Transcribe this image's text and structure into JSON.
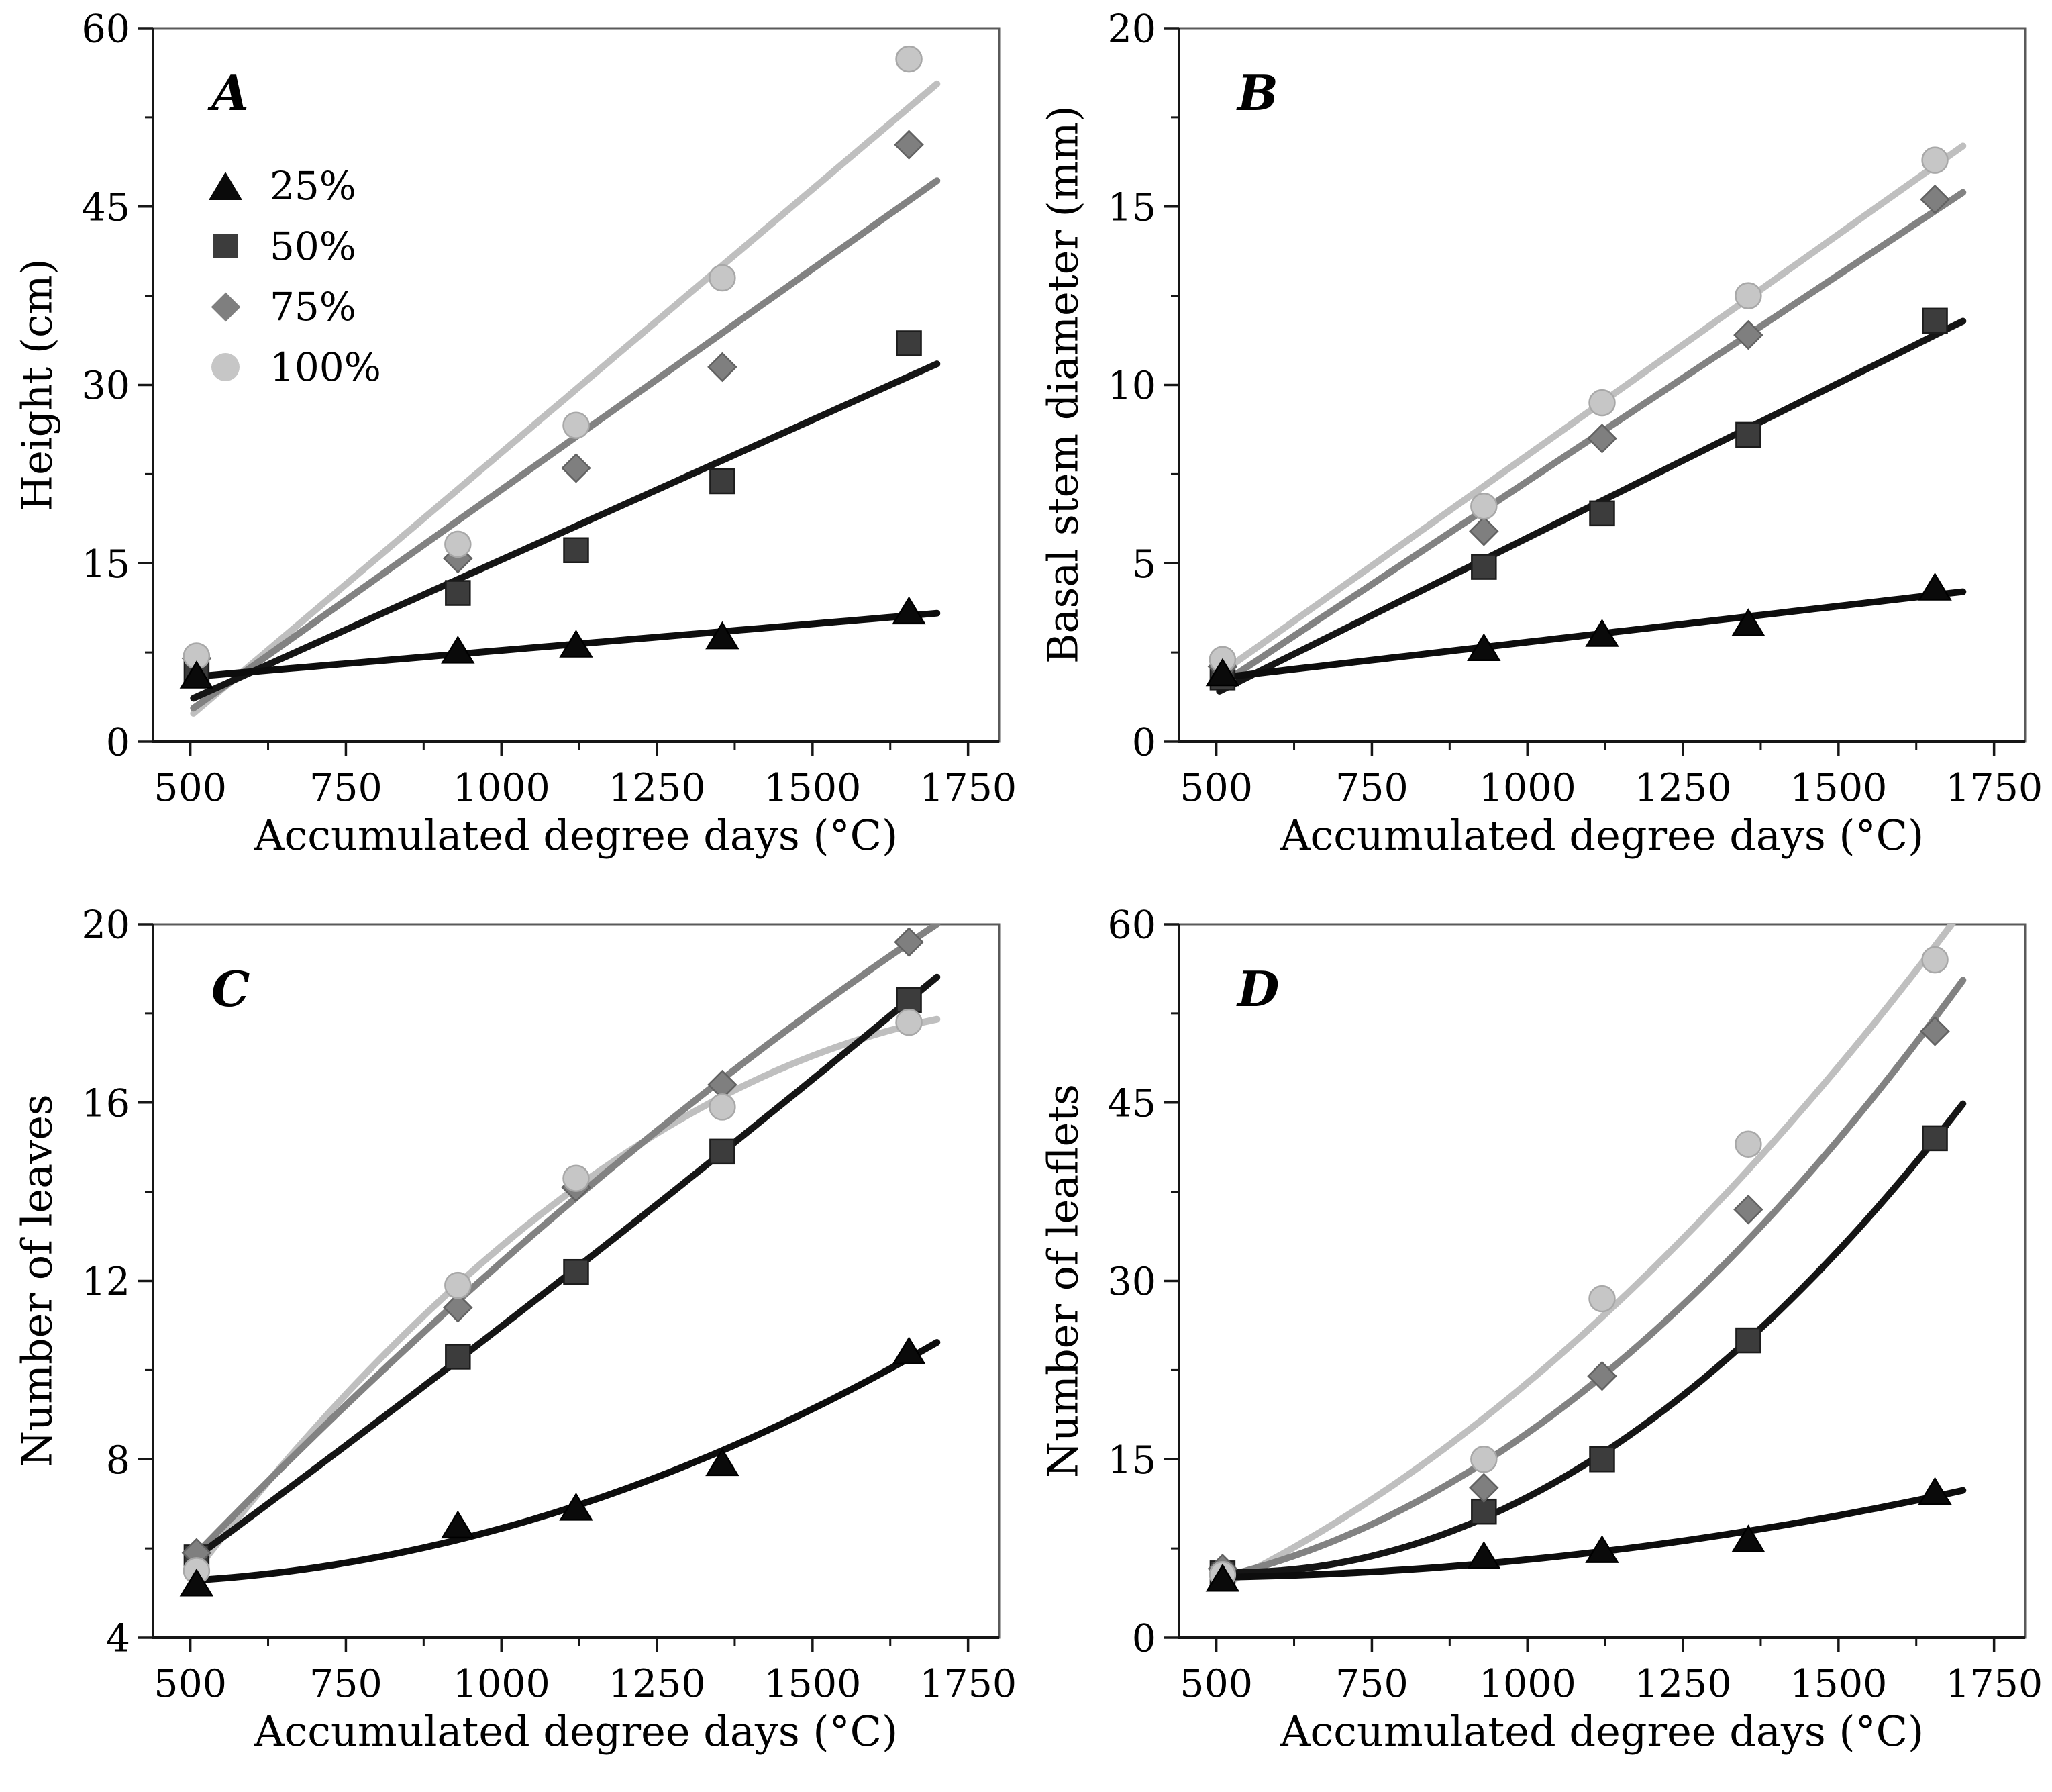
{
  "figure": {
    "background": "#ffffff"
  },
  "chart_data": {
    "type": "scatter",
    "xlabel": "Accumulated degree days (°C)",
    "x_values": [
      510,
      930,
      1120,
      1355,
      1655
    ],
    "xlim": [
      440,
      1800
    ],
    "xticks": [
      500,
      750,
      1000,
      1250,
      1500,
      1750
    ],
    "grid": "off",
    "legend": {
      "position": "upper-left-panel-A",
      "items": [
        {
          "label": "25%",
          "marker": "triangle",
          "color": "#0a0a0a",
          "edge": "#000000",
          "line_color": "#0d0d0d"
        },
        {
          "label": "50%",
          "marker": "square",
          "color": "#3c3c3c",
          "edge": "#1c1c1c",
          "line_color": "#151515"
        },
        {
          "label": "75%",
          "marker": "diamond",
          "color": "#7f7f7f",
          "edge": "#626262",
          "line_color": "#828282"
        },
        {
          "label": "100%",
          "marker": "circle",
          "color": "#c6c6c6",
          "edge": "#a8a8a8",
          "line_color": "#bfbfbf"
        }
      ]
    },
    "panels": [
      {
        "id": "A",
        "letter": "A",
        "ylabel": "Height (cm)",
        "ylim": [
          0,
          60
        ],
        "yticks": [
          0,
          15,
          30,
          45,
          60
        ],
        "fit": "linear",
        "show_legend": true,
        "series": [
          {
            "name": "25%",
            "values": [
              5.5,
              7.6,
              8.1,
              8.8,
              10.9
            ]
          },
          {
            "name": "50%",
            "values": [
              5.9,
              12.5,
              16.1,
              21.9,
              33.5
            ]
          },
          {
            "name": "75%",
            "values": [
              7.0,
              15.4,
              23.0,
              31.5,
              50.2
            ]
          },
          {
            "name": "100%",
            "values": [
              7.2,
              16.6,
              26.6,
              39.0,
              57.4
            ]
          }
        ]
      },
      {
        "id": "B",
        "letter": "B",
        "ylabel": "Basal stem diameter (mm)",
        "ylim": [
          0,
          20
        ],
        "yticks": [
          0,
          5,
          10,
          15,
          20
        ],
        "fit": "linear",
        "show_legend": false,
        "series": [
          {
            "name": "25%",
            "values": [
              1.9,
              2.6,
              3.0,
              3.3,
              4.3
            ]
          },
          {
            "name": "50%",
            "values": [
              1.8,
              4.9,
              6.4,
              8.6,
              11.8
            ]
          },
          {
            "name": "75%",
            "values": [
              2.1,
              5.9,
              8.5,
              11.4,
              15.2
            ]
          },
          {
            "name": "100%",
            "values": [
              2.3,
              6.6,
              9.5,
              12.5,
              16.3
            ]
          }
        ]
      },
      {
        "id": "C",
        "letter": "C",
        "ylabel": "Number of leaves",
        "ylim": [
          4,
          20
        ],
        "yticks": [
          4,
          8,
          12,
          16,
          20
        ],
        "fit": "quadratic",
        "show_legend": false,
        "series": [
          {
            "name": "25%",
            "values": [
              5.2,
              6.5,
              6.9,
              7.9,
              10.4
            ]
          },
          {
            "name": "50%",
            "values": [
              5.8,
              10.3,
              12.2,
              14.9,
              18.3
            ]
          },
          {
            "name": "75%",
            "values": [
              5.9,
              11.4,
              14.1,
              16.4,
              19.6
            ]
          },
          {
            "name": "100%",
            "values": [
              5.5,
              11.9,
              14.3,
              15.9,
              17.8
            ]
          }
        ]
      },
      {
        "id": "D",
        "letter": "D",
        "ylabel": "Number of leaflets",
        "ylim": [
          0,
          60
        ],
        "yticks": [
          0,
          15,
          30,
          45,
          60
        ],
        "fit": "quadratic",
        "show_legend": false,
        "series": [
          {
            "name": "25%",
            "values": [
              4.9,
              6.8,
              7.3,
              8.2,
              12.2
            ]
          },
          {
            "name": "50%",
            "values": [
              5.4,
              10.6,
              15.0,
              25.0,
              42.0
            ]
          },
          {
            "name": "75%",
            "values": [
              5.8,
              12.6,
              22.0,
              36.0,
              51.0
            ]
          },
          {
            "name": "100%",
            "values": [
              5.3,
              15.0,
              28.5,
              41.5,
              57.0
            ]
          }
        ]
      }
    ]
  }
}
